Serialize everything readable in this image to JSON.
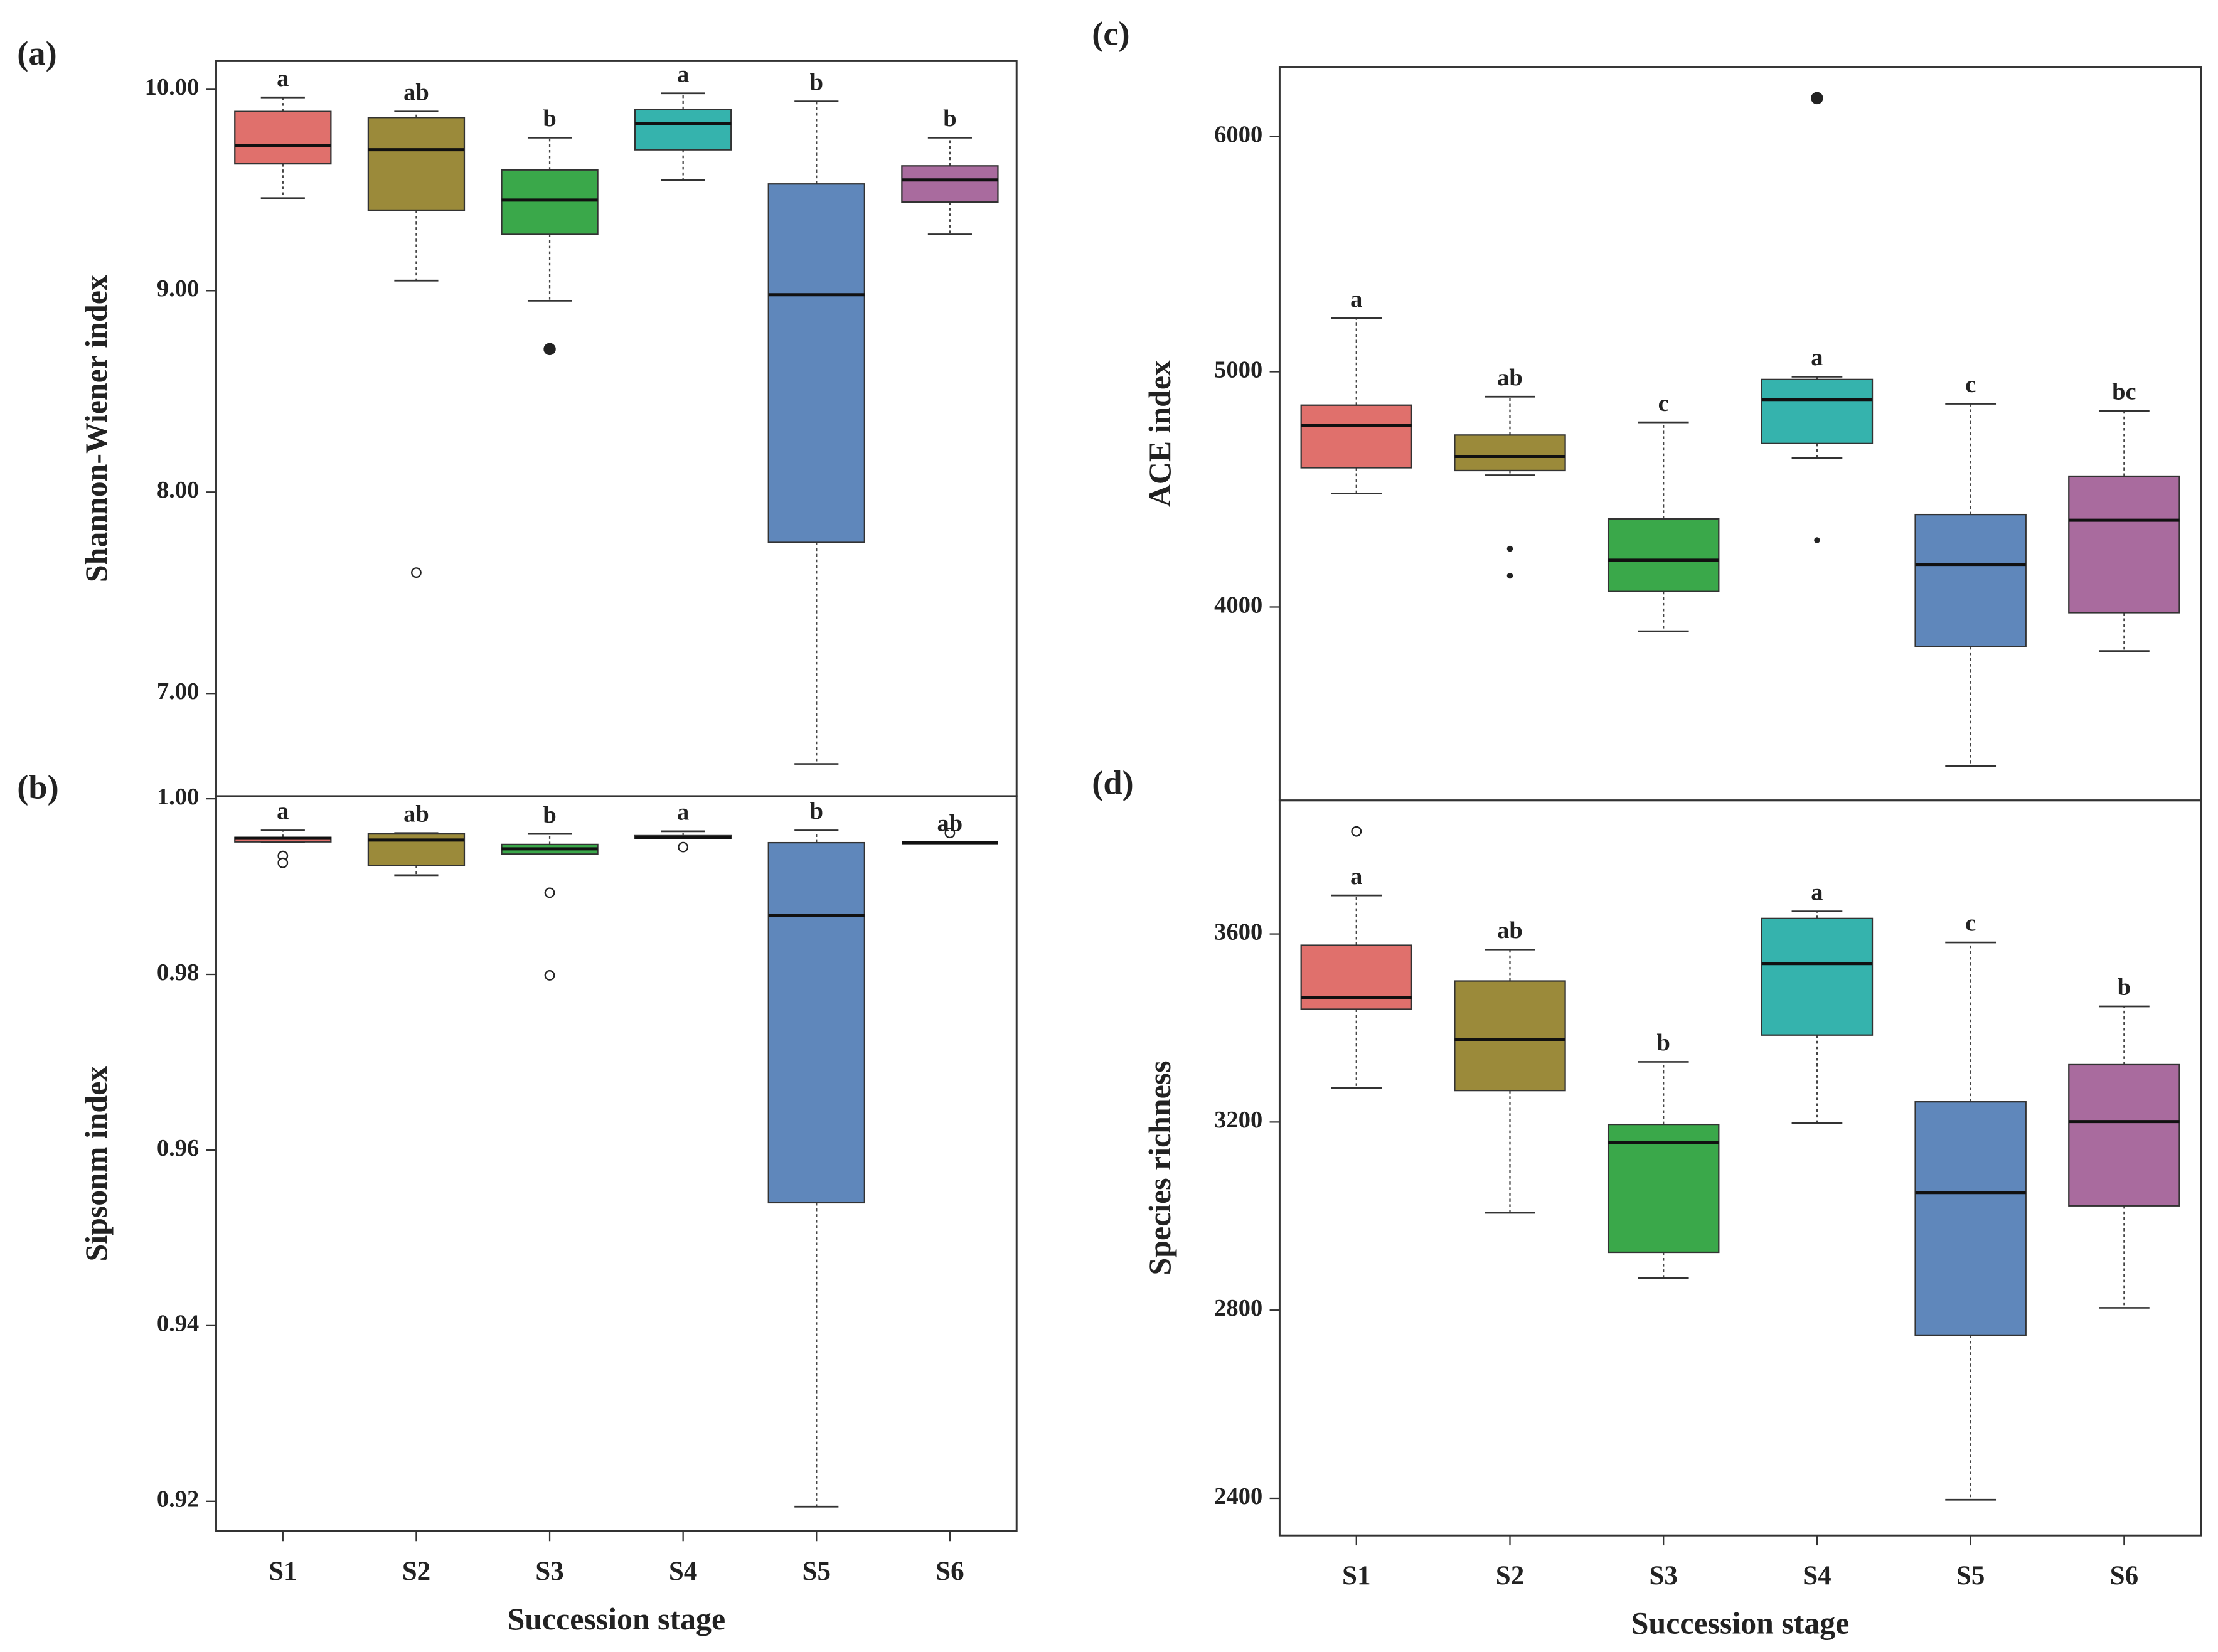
{
  "chart_data": [
    {
      "type": "box",
      "panel_label": "(a)",
      "ylabel": "Shannon-Wiener index",
      "ylim": [
        6.49,
        10.14
      ],
      "yticks": [
        {
          "value": 7,
          "label": "7.00"
        },
        {
          "value": 8,
          "label": "8.00"
        },
        {
          "value": 9,
          "label": "9.00"
        },
        {
          "value": 10,
          "label": "10.00"
        }
      ],
      "colors": [
        "#e0706c",
        "#9b8a3a",
        "#3aa84a",
        "#35b3ad",
        "#5f87bb",
        "#a96b9e"
      ],
      "boxes": [
        {
          "min": 9.46,
          "q1": 9.63,
          "median": 9.72,
          "q3": 9.89,
          "max": 9.96,
          "outliers": [],
          "label": "a"
        },
        {
          "min": 9.05,
          "q1": 9.4,
          "median": 9.7,
          "q3": 9.86,
          "max": 9.89,
          "outliers": [
            {
              "value": 7.6,
              "style": "open"
            }
          ],
          "label": "ab"
        },
        {
          "min": 8.95,
          "q1": 9.28,
          "median": 9.45,
          "q3": 9.6,
          "max": 9.76,
          "outliers": [
            {
              "value": 8.71,
              "style": "filled"
            }
          ],
          "label": "b"
        },
        {
          "min": 9.55,
          "q1": 9.7,
          "median": 9.83,
          "q3": 9.9,
          "max": 9.98,
          "outliers": [],
          "label": "a"
        },
        {
          "min": 6.65,
          "q1": 7.75,
          "median": 8.98,
          "q3": 9.53,
          "max": 9.94,
          "outliers": [],
          "label": "b"
        },
        {
          "min": 9.28,
          "q1": 9.44,
          "median": 9.55,
          "q3": 9.62,
          "max": 9.76,
          "outliers": [],
          "label": "b"
        }
      ]
    },
    {
      "type": "box",
      "panel_label": "(b)",
      "ylabel": "Sipsonm index",
      "xlabel": "Succession stage",
      "categories": [
        "S1",
        "S2",
        "S3",
        "S4",
        "S5",
        "S6"
      ],
      "ylim": [
        0.9166,
        1.0003
      ],
      "yticks": [
        {
          "value": 0.92,
          "label": "0.92"
        },
        {
          "value": 0.94,
          "label": "0.94"
        },
        {
          "value": 0.96,
          "label": "0.96"
        },
        {
          "value": 0.98,
          "label": "0.98"
        },
        {
          "value": 1,
          "label": "1.00"
        }
      ],
      "colors": [
        "#e0706c",
        "#9b8a3a",
        "#3aa84a",
        "#35b3ad",
        "#5f87bb",
        "#a96b9e"
      ],
      "boxes": [
        {
          "min": 0.9951,
          "q1": 0.9951,
          "median": 0.9955,
          "q3": 0.9956,
          "max": 0.9964,
          "outliers": [
            {
              "value": 0.9935,
              "style": "open"
            },
            {
              "value": 0.9927,
              "style": "open"
            }
          ],
          "label": "a"
        },
        {
          "min": 0.9913,
          "q1": 0.9924,
          "median": 0.9953,
          "q3": 0.996,
          "max": 0.9961,
          "outliers": [],
          "label": "ab"
        },
        {
          "min": 0.9937,
          "q1": 0.9937,
          "median": 0.9943,
          "q3": 0.9948,
          "max": 0.996,
          "outliers": [
            {
              "value": 0.9893,
              "style": "open"
            },
            {
              "value": 0.9799,
              "style": "open"
            }
          ],
          "label": "b"
        },
        {
          "min": 0.9955,
          "q1": 0.9955,
          "median": 0.9956,
          "q3": 0.9958,
          "max": 0.9963,
          "outliers": [
            {
              "value": 0.9945,
              "style": "open"
            }
          ],
          "label": "a"
        },
        {
          "min": 0.9194,
          "q1": 0.954,
          "median": 0.9867,
          "q3": 0.995,
          "max": 0.9964,
          "outliers": [],
          "label": "b"
        },
        {
          "min": 0.995,
          "q1": 0.995,
          "median": 0.995,
          "q3": 0.995,
          "max": 0.995,
          "outliers": [
            {
              "value": 0.9961,
              "style": "open"
            }
          ],
          "label": "ab"
        }
      ]
    },
    {
      "type": "box",
      "panel_label": "(c)",
      "ylabel": "ACE index",
      "ylim": [
        3178,
        6296
      ],
      "yticks": [
        4000,
        5000,
        6000
      ],
      "colors": [
        "#e0706c",
        "#9b8a3a",
        "#3aa84a",
        "#35b3ad",
        "#5f87bb",
        "#a96b9e"
      ],
      "boxes": [
        {
          "min": 4483,
          "q1": 4592,
          "median": 4773,
          "q3": 4858,
          "max": 5227,
          "outliers": [],
          "label": "a"
        },
        {
          "min": 4560,
          "q1": 4580,
          "median": 4640,
          "q3": 4731,
          "max": 4894,
          "outliers": [
            {
              "value": 4248,
              "style": "dot"
            },
            {
              "value": 4133,
              "style": "dot"
            }
          ],
          "label": "ab"
        },
        {
          "min": 3897,
          "q1": 4066,
          "median": 4199,
          "q3": 4375,
          "max": 4785,
          "outliers": [],
          "label": "c"
        },
        {
          "min": 4634,
          "q1": 4695,
          "median": 4882,
          "q3": 4967,
          "max": 4979,
          "outliers": [
            {
              "value": 6163,
              "style": "filled"
            },
            {
              "value": 4284,
              "style": "dot"
            }
          ],
          "label": "a"
        },
        {
          "min": 3323,
          "q1": 3831,
          "median": 4181,
          "q3": 4393,
          "max": 4864,
          "outliers": [],
          "label": "c"
        },
        {
          "min": 3813,
          "q1": 3976,
          "median": 4369,
          "q3": 4556,
          "max": 4834,
          "outliers": [],
          "label": "bc"
        }
      ]
    },
    {
      "type": "box",
      "panel_label": "(d)",
      "ylabel": "Species richness",
      "xlabel": "Succession stage",
      "categories": [
        "S1",
        "S2",
        "S3",
        "S4",
        "S5",
        "S6"
      ],
      "ylim": [
        2321,
        3884
      ],
      "yticks": [
        2400,
        2800,
        3200,
        3600
      ],
      "colors": [
        "#e0706c",
        "#9b8a3a",
        "#3aa84a",
        "#35b3ad",
        "#5f87bb",
        "#a96b9e"
      ],
      "boxes": [
        {
          "min": 3273,
          "q1": 3440,
          "median": 3464,
          "q3": 3576,
          "max": 3682,
          "outliers": [
            {
              "value": 3818,
              "style": "open"
            }
          ],
          "label": "a"
        },
        {
          "min": 3007,
          "q1": 3267,
          "median": 3376,
          "q3": 3500,
          "max": 3567,
          "outliers": [],
          "label": "ab"
        },
        {
          "min": 2868,
          "q1": 2923,
          "median": 3156,
          "q3": 3195,
          "max": 3328,
          "outliers": [],
          "label": "b"
        },
        {
          "min": 3198,
          "q1": 3385,
          "median": 3537,
          "q3": 3633,
          "max": 3648,
          "outliers": [],
          "label": "a"
        },
        {
          "min": 2397,
          "q1": 2747,
          "median": 3050,
          "q3": 3243,
          "max": 3582,
          "outliers": [],
          "label": "c"
        },
        {
          "min": 2805,
          "q1": 3022,
          "median": 3201,
          "q3": 3322,
          "max": 3446,
          "outliers": [],
          "label": "b"
        }
      ]
    }
  ]
}
